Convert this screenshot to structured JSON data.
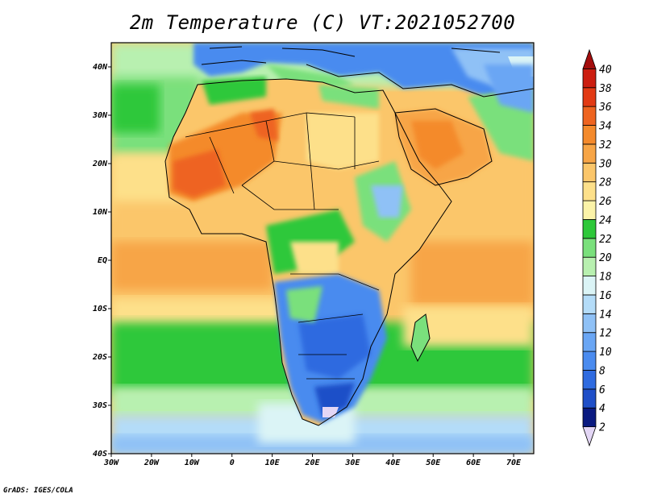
{
  "title": "2m Temperature (C) VT:2021052700",
  "credit": "GrADS: IGES/COLA",
  "map": {
    "lon_range": [
      -30,
      75
    ],
    "lat_range": [
      -40,
      45
    ],
    "x_ticks": [
      {
        "lon": -30,
        "label": "30W"
      },
      {
        "lon": -20,
        "label": "20W"
      },
      {
        "lon": -10,
        "label": "10W"
      },
      {
        "lon": 0,
        "label": "0"
      },
      {
        "lon": 10,
        "label": "10E"
      },
      {
        "lon": 20,
        "label": "20E"
      },
      {
        "lon": 30,
        "label": "30E"
      },
      {
        "lon": 40,
        "label": "40E"
      },
      {
        "lon": 50,
        "label": "50E"
      },
      {
        "lon": 60,
        "label": "60E"
      },
      {
        "lon": 70,
        "label": "70E"
      }
    ],
    "y_ticks": [
      {
        "lat": 40,
        "label": "40N"
      },
      {
        "lat": 30,
        "label": "30N"
      },
      {
        "lat": 20,
        "label": "20N"
      },
      {
        "lat": 10,
        "label": "10N"
      },
      {
        "lat": 0,
        "label": "EQ"
      },
      {
        "lat": -10,
        "label": "10S"
      },
      {
        "lat": -20,
        "label": "20S"
      },
      {
        "lat": -30,
        "label": "30S"
      },
      {
        "lat": -40,
        "label": "40S"
      }
    ]
  },
  "colorbar": {
    "labels": [
      "2",
      "4",
      "6",
      "8",
      "10",
      "12",
      "14",
      "16",
      "18",
      "20",
      "22",
      "24",
      "26",
      "28",
      "30",
      "32",
      "34",
      "36",
      "38",
      "40"
    ],
    "colors": [
      "#e3d6f5",
      "#0a1a80",
      "#1f4fc8",
      "#2f6be0",
      "#4a8bef",
      "#6aa6f4",
      "#8fc1f6",
      "#b4dcf8",
      "#dbf4f6",
      "#b8f0b0",
      "#7ae07c",
      "#2ec83a",
      "#fbf3a8",
      "#fde08a",
      "#fbc66a",
      "#f7a546",
      "#f48a2c",
      "#ee6420",
      "#e23a14",
      "#cc1e10",
      "#a30d0d"
    ]
  }
}
